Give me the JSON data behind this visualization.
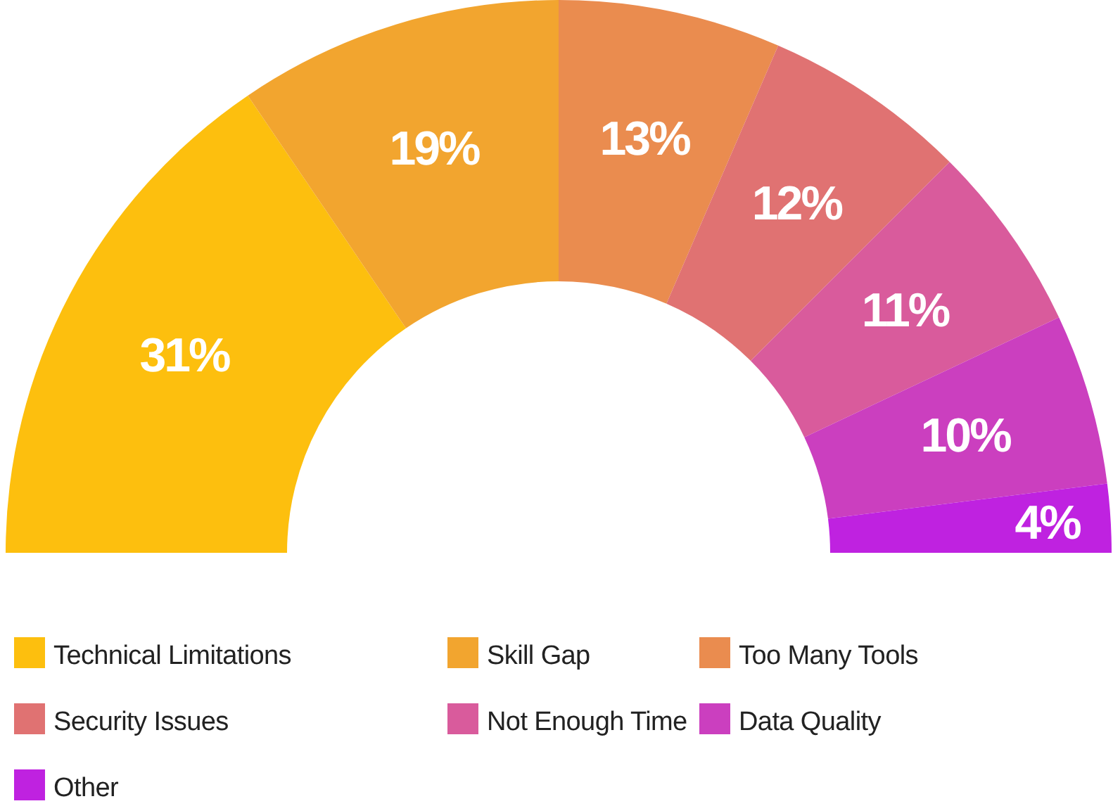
{
  "chart_data": {
    "type": "donut",
    "categories": [
      "Technical Limitations",
      "Skill Gap",
      "Too Many Tools",
      "Security Issues",
      "Not Enough Time",
      "Data Quality",
      "Other"
    ],
    "values": [
      31,
      19,
      13,
      12,
      11,
      10,
      4
    ],
    "colors": [
      "#fdbf0e",
      "#f2a52f",
      "#ea8c4f",
      "#e07272",
      "#d95b9c",
      "#cb3fbf",
      "#bf22e0"
    ],
    "value_labels": [
      "31%",
      "19%",
      "13%",
      "12%",
      "11%",
      "10%",
      "4%"
    ],
    "legend": "bottom"
  }
}
